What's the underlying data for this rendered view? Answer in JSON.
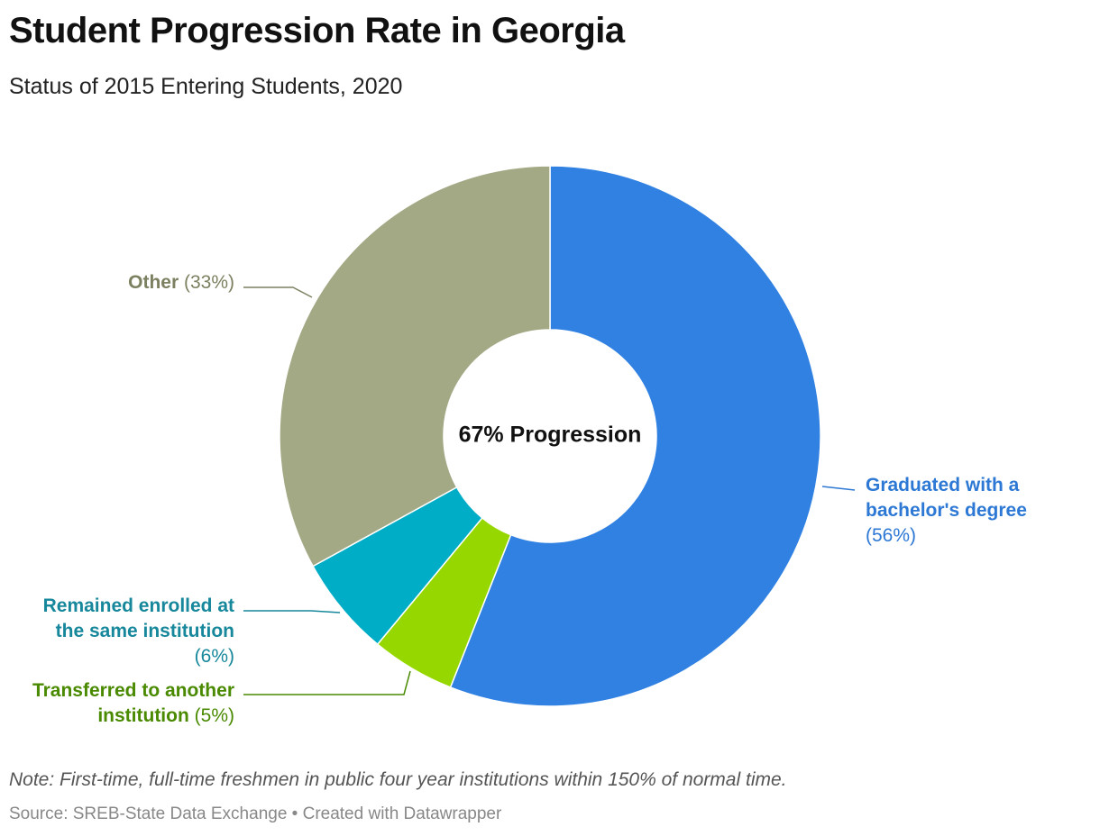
{
  "title": "Student Progression Rate in Georgia",
  "subtitle": "Status of 2015 Entering Students, 2020",
  "note": "Note: First-time, full-time freshmen in public four year institutions within 150% of normal time.",
  "source": "Source: SREB-State Data Exchange • Created with Datawrapper",
  "chart_data": {
    "type": "pie",
    "donut": true,
    "center_label": "67% Progression",
    "slices": [
      {
        "name_lines": [
          "Graduated with a",
          "bachelor's degree"
        ],
        "pct_text": "(56%)",
        "value": 56,
        "color": "#3081e2",
        "label_color": "#2c78d4",
        "label_side": "right"
      },
      {
        "name_lines": [
          "Transferred to another",
          "institution"
        ],
        "pct_text": "(5%)",
        "value": 5,
        "color": "#96d700",
        "label_color": "#4a8a00",
        "label_side": "left"
      },
      {
        "name_lines": [
          "Remained enrolled at",
          "the same institution"
        ],
        "pct_text": "(6%)",
        "value": 6,
        "color": "#00adc6",
        "label_color": "#17889c",
        "label_side": "left"
      },
      {
        "name_lines": [
          "Other"
        ],
        "pct_text": "(33%)",
        "value": 33,
        "color": "#a3a885",
        "label_color": "#7d8060",
        "label_side": "left"
      }
    ]
  }
}
